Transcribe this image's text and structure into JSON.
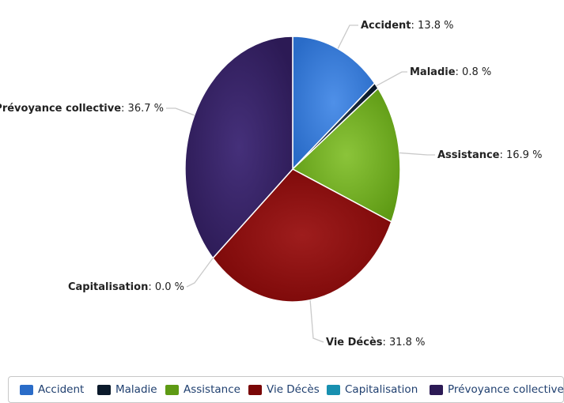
{
  "chart_data": {
    "type": "pie",
    "title": "",
    "slices": [
      {
        "name": "Accident",
        "label": "Accident",
        "value_text": ": 13.8 %",
        "value": 13.8,
        "color": "#2a6cc8",
        "highlight": "#4f90e8"
      },
      {
        "name": "Maladie",
        "label": "Maladie",
        "value_text": ": 0.8 %",
        "value": 0.8,
        "color": "#0b1a2b",
        "highlight": "#283848"
      },
      {
        "name": "Assistance",
        "label": "Assistance",
        "value_text": ": 16.9 %",
        "value": 16.9,
        "color": "#5e9a14",
        "highlight": "#8bc43a"
      },
      {
        "name": "Vie Décès",
        "label": "Vie Décès",
        "value_text": ": 31.8 %",
        "value": 31.8,
        "color": "#7a0707",
        "highlight": "#9e1d1d"
      },
      {
        "name": "Capitalisation",
        "label": "Capitalisation",
        "value_text": ": 0.0 %",
        "value": 0.0,
        "color": "#1890b0",
        "highlight": "#3fb2cf"
      },
      {
        "name": "Prévoyance collective",
        "label": "Prévoyance collective",
        "value_text": ": 36.7 %",
        "value": 36.7,
        "color": "#2c1a55",
        "highlight": "#45307a"
      }
    ],
    "legend_position": "bottom"
  },
  "legend": {
    "items": [
      {
        "label": "Accident",
        "color": "#2a6cc8"
      },
      {
        "label": "Maladie",
        "color": "#0b1a2b"
      },
      {
        "label": "Assistance",
        "color": "#5e9a14"
      },
      {
        "label": "Vie Décès",
        "color": "#7a0707"
      },
      {
        "label": "Capitalisation",
        "color": "#1890b0"
      },
      {
        "label": "Prévoyance collective",
        "color": "#2c1a55"
      }
    ]
  }
}
